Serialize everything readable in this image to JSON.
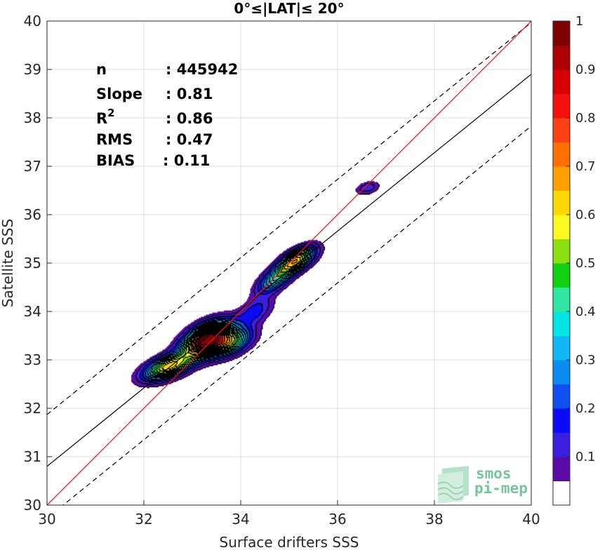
{
  "chart_data": {
    "type": "contour-density",
    "title": "0°≤|LAT|≤ 20°",
    "xlabel": "Surface drifters SSS",
    "ylabel": "Satellite SSS",
    "xlim": [
      30,
      40
    ],
    "ylim": [
      30,
      40
    ],
    "xticks": [
      "30",
      "32",
      "34",
      "36",
      "38",
      "40"
    ],
    "yticks": [
      "30",
      "31",
      "32",
      "33",
      "34",
      "35",
      "36",
      "37",
      "38",
      "39",
      "40"
    ],
    "grid": true,
    "stats": [
      {
        "key": "n",
        "value": ": 445942"
      },
      {
        "key": "Slope",
        "value": ": 0.81"
      },
      {
        "key": "R",
        "sup": "2",
        "value": ": 0.86"
      },
      {
        "key": "RMS",
        "value": ": 0.47"
      },
      {
        "key": "BIAS",
        "value": ": 0.11"
      }
    ],
    "lines": {
      "identity": {
        "color": "#e8191b",
        "x": [
          30,
          40
        ],
        "y": [
          30,
          40
        ]
      },
      "regression": {
        "color": "#000000",
        "x": [
          30,
          40
        ],
        "y": [
          30.8,
          38.9
        ]
      },
      "upper_bound": {
        "color": "#000000",
        "style": "dashed",
        "x": [
          30,
          40
        ],
        "y": [
          31.87,
          39.97
        ]
      },
      "lower_bound": {
        "color": "#000000",
        "style": "dashed",
        "x": [
          30,
          40
        ],
        "y": [
          29.73,
          37.83
        ]
      }
    },
    "colorbar": {
      "range": [
        0,
        1
      ],
      "ticks": [
        "0.1",
        "0.2",
        "0.3",
        "0.4",
        "0.5",
        "0.6",
        "0.7",
        "0.8",
        "0.9",
        "1"
      ],
      "colors": [
        "#ffffff",
        "#5a0aa7",
        "#3c1ee0",
        "#0b0bfa",
        "#1150f0",
        "#0a8cf2",
        "#12b8f5",
        "#00e6e6",
        "#30e6a0",
        "#10d010",
        "#8ae010",
        "#fafa20",
        "#ffd700",
        "#ffa000",
        "#ff7000",
        "#ff4010",
        "#f51010",
        "#d70000",
        "#ad0000",
        "#7f0000"
      ]
    },
    "density_blobs": [
      {
        "x": 32.5,
        "y": 32.85,
        "sx": 0.34,
        "sy": 0.19,
        "rho": 0.55,
        "w": 0.62
      },
      {
        "x": 33.3,
        "y": 33.42,
        "sx": 0.33,
        "sy": 0.24,
        "rho": 0.5,
        "w": 1.0
      },
      {
        "x": 33.8,
        "y": 33.35,
        "sx": 0.3,
        "sy": 0.2,
        "rho": 0.5,
        "w": 0.45
      },
      {
        "x": 34.3,
        "y": 34.0,
        "sx": 0.25,
        "sy": 0.2,
        "rho": 0.5,
        "w": 0.18
      },
      {
        "x": 34.7,
        "y": 34.65,
        "sx": 0.25,
        "sy": 0.2,
        "rho": 0.6,
        "w": 0.35
      },
      {
        "x": 35.15,
        "y": 35.05,
        "sx": 0.26,
        "sy": 0.19,
        "rho": 0.6,
        "w": 0.62
      },
      {
        "x": 36.62,
        "y": 36.55,
        "sx": 0.17,
        "sy": 0.1,
        "rho": 0.3,
        "w": 0.14
      }
    ],
    "contour_levels": [
      0.05,
      0.1,
      0.15,
      0.2,
      0.25,
      0.3,
      0.35,
      0.4,
      0.45,
      0.5,
      0.55,
      0.6,
      0.65,
      0.7,
      0.75,
      0.8,
      0.85,
      0.9,
      0.95
    ]
  },
  "logo": {
    "line1": "smos",
    "line2": "pi-mep"
  }
}
